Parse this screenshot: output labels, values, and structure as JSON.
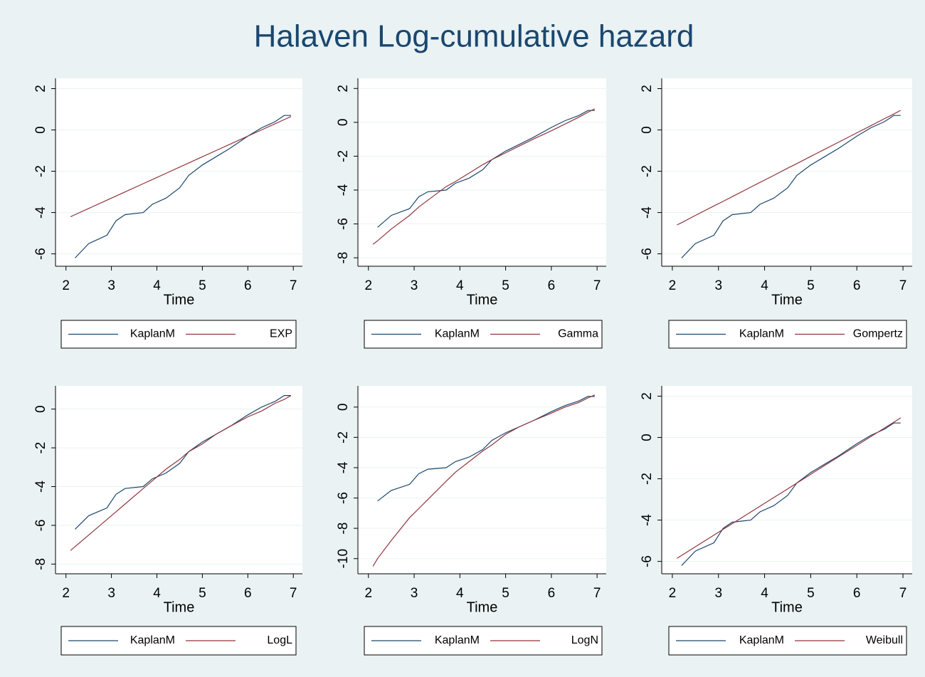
{
  "title": "Halaven Log-cumulative hazard",
  "chart_data": [
    {
      "type": "line",
      "x_label": "Time",
      "grid": true,
      "x": [
        2.1,
        2.2,
        2.5,
        2.9,
        3.1,
        3.3,
        3.7,
        3.9,
        4.2,
        4.5,
        4.7,
        5.0,
        5.3,
        5.6,
        6.0,
        6.3,
        6.6,
        6.8,
        6.95
      ],
      "series": [
        {
          "name": "KaplanM",
          "color": "#1a476f",
          "values": [
            null,
            -6.2,
            -5.5,
            -5.1,
            -4.4,
            -4.1,
            -4.0,
            -3.6,
            -3.3,
            -2.8,
            -2.2,
            -1.7,
            -1.3,
            -0.9,
            -0.3,
            0.1,
            0.4,
            0.7,
            0.7
          ]
        },
        {
          "name": "EXP",
          "color": "#90353b",
          "values": [
            -4.2,
            -4.1,
            -3.8,
            -3.4,
            -3.2,
            -3.0,
            -2.6,
            -2.4,
            -2.1,
            -1.8,
            -1.6,
            -1.3,
            -1.0,
            -0.7,
            -0.3,
            0.0,
            0.3,
            0.5,
            0.65
          ]
        }
      ],
      "xlim": [
        1.77,
        7.2
      ],
      "ylim": [
        -6.6,
        2.5
      ],
      "xticks": [
        2,
        3,
        4,
        5,
        6,
        7
      ],
      "yticks": [
        -6,
        -4,
        -2,
        0,
        2
      ]
    },
    {
      "type": "line",
      "x_label": "Time",
      "grid": true,
      "x": [
        2.1,
        2.2,
        2.5,
        2.9,
        3.1,
        3.3,
        3.7,
        3.9,
        4.2,
        4.5,
        4.7,
        5.0,
        5.3,
        5.6,
        6.0,
        6.3,
        6.6,
        6.8,
        6.95
      ],
      "series": [
        {
          "name": "KaplanM",
          "color": "#1a476f",
          "values": [
            null,
            -6.2,
            -5.5,
            -5.1,
            -4.4,
            -4.1,
            -4.0,
            -3.6,
            -3.3,
            -2.8,
            -2.2,
            -1.7,
            -1.3,
            -0.9,
            -0.3,
            0.1,
            0.4,
            0.7,
            0.7
          ]
        },
        {
          "name": "Gamma",
          "color": "#90353b",
          "values": [
            -7.2,
            -7.0,
            -6.3,
            -5.5,
            -5.0,
            -4.6,
            -3.8,
            -3.5,
            -3.0,
            -2.5,
            -2.2,
            -1.8,
            -1.4,
            -1.0,
            -0.5,
            -0.1,
            0.3,
            0.6,
            0.8
          ]
        }
      ],
      "xlim": [
        1.77,
        7.2
      ],
      "ylim": [
        -8.5,
        2.6
      ],
      "xticks": [
        2,
        3,
        4,
        5,
        6,
        7
      ],
      "yticks": [
        -8,
        -6,
        -4,
        -2,
        0,
        2
      ]
    },
    {
      "type": "line",
      "x_label": "Time",
      "grid": true,
      "x": [
        2.1,
        2.2,
        2.5,
        2.9,
        3.1,
        3.3,
        3.7,
        3.9,
        4.2,
        4.5,
        4.7,
        5.0,
        5.3,
        5.6,
        6.0,
        6.3,
        6.6,
        6.8,
        6.95
      ],
      "series": [
        {
          "name": "KaplanM",
          "color": "#1a476f",
          "values": [
            null,
            -6.2,
            -5.5,
            -5.1,
            -4.4,
            -4.1,
            -4.0,
            -3.6,
            -3.3,
            -2.8,
            -2.2,
            -1.7,
            -1.3,
            -0.9,
            -0.3,
            0.1,
            0.4,
            0.7,
            0.7
          ]
        },
        {
          "name": "Gompertz",
          "color": "#90353b",
          "values": [
            -4.6,
            -4.49,
            -4.14,
            -3.68,
            -3.46,
            -3.23,
            -2.77,
            -2.54,
            -2.2,
            -1.85,
            -1.63,
            -1.28,
            -0.94,
            -0.6,
            -0.14,
            0.2,
            0.55,
            0.77,
            0.95
          ]
        }
      ],
      "xlim": [
        1.77,
        7.2
      ],
      "ylim": [
        -6.6,
        2.5
      ],
      "xticks": [
        2,
        3,
        4,
        5,
        6,
        7
      ],
      "yticks": [
        -6,
        -4,
        -2,
        0,
        2
      ]
    },
    {
      "type": "line",
      "x_label": "Time",
      "grid": true,
      "x": [
        2.1,
        2.2,
        2.5,
        2.9,
        3.1,
        3.3,
        3.7,
        3.9,
        4.2,
        4.5,
        4.7,
        5.0,
        5.3,
        5.6,
        6.0,
        6.3,
        6.6,
        6.8,
        6.95
      ],
      "series": [
        {
          "name": "KaplanM",
          "color": "#1a476f",
          "values": [
            null,
            -6.2,
            -5.5,
            -5.1,
            -4.4,
            -4.1,
            -4.0,
            -3.6,
            -3.3,
            -2.8,
            -2.2,
            -1.7,
            -1.3,
            -0.9,
            -0.3,
            0.1,
            0.4,
            0.7,
            0.7
          ]
        },
        {
          "name": "LogL",
          "color": "#90353b",
          "values": [
            -7.3,
            -7.1,
            -6.5,
            -5.7,
            -5.3,
            -4.9,
            -4.1,
            -3.7,
            -3.1,
            -2.6,
            -2.2,
            -1.8,
            -1.3,
            -0.9,
            -0.4,
            -0.1,
            0.3,
            0.5,
            0.7
          ]
        }
      ],
      "xlim": [
        1.77,
        7.2
      ],
      "ylim": [
        -8.5,
        1.2
      ],
      "xticks": [
        2,
        3,
        4,
        5,
        6,
        7
      ],
      "yticks": [
        -8,
        -6,
        -4,
        -2,
        0
      ]
    },
    {
      "type": "line",
      "x_label": "Time",
      "grid": true,
      "x": [
        2.1,
        2.2,
        2.5,
        2.9,
        3.1,
        3.3,
        3.7,
        3.9,
        4.2,
        4.5,
        4.7,
        5.0,
        5.3,
        5.6,
        6.0,
        6.3,
        6.6,
        6.8,
        6.95
      ],
      "series": [
        {
          "name": "KaplanM",
          "color": "#1a476f",
          "values": [
            null,
            -6.2,
            -5.5,
            -5.1,
            -4.4,
            -4.1,
            -4.0,
            -3.6,
            -3.3,
            -2.8,
            -2.2,
            -1.7,
            -1.3,
            -0.9,
            -0.3,
            0.1,
            0.4,
            0.7,
            0.7
          ]
        },
        {
          "name": "LogN",
          "color": "#90353b",
          "values": [
            -10.5,
            -10.0,
            -8.8,
            -7.3,
            -6.7,
            -6.1,
            -4.9,
            -4.3,
            -3.6,
            -2.9,
            -2.5,
            -1.8,
            -1.3,
            -0.9,
            -0.4,
            0.0,
            0.3,
            0.6,
            0.8
          ]
        }
      ],
      "xlim": [
        1.77,
        7.2
      ],
      "ylim": [
        -11,
        1.4
      ],
      "xticks": [
        2,
        3,
        4,
        5,
        6,
        7
      ],
      "yticks": [
        -10,
        -8,
        -6,
        -4,
        -2,
        0
      ]
    },
    {
      "type": "line",
      "x_label": "Time",
      "grid": true,
      "x": [
        2.1,
        2.2,
        2.5,
        2.9,
        3.1,
        3.3,
        3.7,
        3.9,
        4.2,
        4.5,
        4.7,
        5.0,
        5.3,
        5.6,
        6.0,
        6.3,
        6.6,
        6.8,
        6.95
      ],
      "series": [
        {
          "name": "KaplanM",
          "color": "#1a476f",
          "values": [
            null,
            -6.2,
            -5.5,
            -5.1,
            -4.4,
            -4.1,
            -4.0,
            -3.6,
            -3.3,
            -2.8,
            -2.2,
            -1.7,
            -1.3,
            -0.9,
            -0.3,
            0.1,
            0.4,
            0.7,
            0.7
          ]
        },
        {
          "name": "Weibull",
          "color": "#90353b",
          "values": [
            -5.85,
            -5.71,
            -5.29,
            -4.73,
            -4.45,
            -4.17,
            -3.61,
            -3.33,
            -2.91,
            -2.49,
            -2.21,
            -1.78,
            -1.36,
            -0.94,
            -0.38,
            0.04,
            0.46,
            0.74,
            0.95
          ]
        }
      ],
      "xlim": [
        1.77,
        7.2
      ],
      "ylim": [
        -6.6,
        2.5
      ],
      "xticks": [
        2,
        3,
        4,
        5,
        6,
        7
      ],
      "yticks": [
        -6,
        -4,
        -2,
        0,
        2
      ]
    }
  ]
}
